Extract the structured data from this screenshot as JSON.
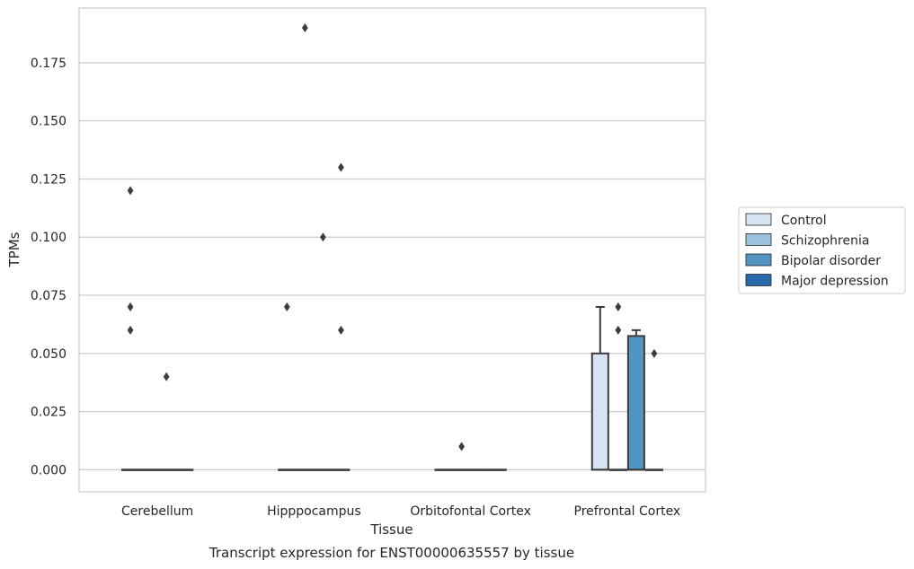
{
  "chart_data": {
    "type": "box",
    "caption": "Transcript expression for ENST00000635557 by tissue",
    "xlabel": "Tissue",
    "ylabel": "TPMs",
    "ylim": [
      -0.0095,
      0.1985
    ],
    "yticks": [
      "0.000",
      "0.025",
      "0.050",
      "0.075",
      "0.100",
      "0.125",
      "0.150",
      "0.175"
    ],
    "grid": true,
    "legend_placement": "center-right",
    "categories": [
      "Cerebellum",
      "Hipppocampus",
      "Orbitofontal Cortex",
      "Prefrontal Cortex"
    ],
    "series": [
      {
        "name": "Control",
        "color": "#d6e4f3",
        "boxes": [
          {
            "category": "Cerebellum",
            "q1": 0,
            "median": 0,
            "q3": 0,
            "whisker_low": 0,
            "whisker_high": 0,
            "outliers": [
              0.12,
              0.07,
              0.06
            ]
          },
          {
            "category": "Hipppocampus",
            "q1": 0,
            "median": 0,
            "q3": 0,
            "whisker_low": 0,
            "whisker_high": 0,
            "outliers": [
              0.07
            ]
          },
          {
            "category": "Orbitofontal Cortex",
            "q1": 0,
            "median": 0,
            "q3": 0,
            "whisker_low": 0,
            "whisker_high": 0,
            "outliers": []
          },
          {
            "category": "Prefrontal Cortex",
            "q1": 0,
            "median": 0,
            "q3": 0.05,
            "whisker_low": 0,
            "whisker_high": 0.07,
            "outliers": []
          }
        ]
      },
      {
        "name": "Schizophrenia",
        "color": "#9cc3de",
        "boxes": [
          {
            "category": "Cerebellum",
            "q1": 0,
            "median": 0,
            "q3": 0,
            "whisker_low": 0,
            "whisker_high": 0,
            "outliers": []
          },
          {
            "category": "Hipppocampus",
            "q1": 0,
            "median": 0,
            "q3": 0,
            "whisker_low": 0,
            "whisker_high": 0,
            "outliers": [
              0.19
            ]
          },
          {
            "category": "Orbitofontal Cortex",
            "q1": 0,
            "median": 0,
            "q3": 0,
            "whisker_low": 0,
            "whisker_high": 0,
            "outliers": [
              0.01
            ]
          },
          {
            "category": "Prefrontal Cortex",
            "q1": 0,
            "median": 0,
            "q3": 0,
            "whisker_low": 0,
            "whisker_high": 0,
            "outliers": [
              0.07,
              0.06
            ]
          }
        ]
      },
      {
        "name": "Bipolar disorder",
        "color": "#5294c2",
        "boxes": [
          {
            "category": "Cerebellum",
            "q1": 0,
            "median": 0,
            "q3": 0,
            "whisker_low": 0,
            "whisker_high": 0,
            "outliers": [
              0.04
            ]
          },
          {
            "category": "Hipppocampus",
            "q1": 0,
            "median": 0,
            "q3": 0,
            "whisker_low": 0,
            "whisker_high": 0,
            "outliers": [
              0.1
            ]
          },
          {
            "category": "Orbitofontal Cortex",
            "q1": 0,
            "median": 0,
            "q3": 0,
            "whisker_low": 0,
            "whisker_high": 0,
            "outliers": []
          },
          {
            "category": "Prefrontal Cortex",
            "q1": 0,
            "median": 0,
            "q3": 0.0575,
            "whisker_low": 0,
            "whisker_high": 0.06,
            "outliers": []
          }
        ]
      },
      {
        "name": "Major depression",
        "color": "#2a6aab",
        "boxes": [
          {
            "category": "Cerebellum",
            "q1": 0,
            "median": 0,
            "q3": 0,
            "whisker_low": 0,
            "whisker_high": 0,
            "outliers": []
          },
          {
            "category": "Hipppocampus",
            "q1": 0,
            "median": 0,
            "q3": 0,
            "whisker_low": 0,
            "whisker_high": 0,
            "outliers": [
              0.13,
              0.06
            ]
          },
          {
            "category": "Orbitofontal Cortex",
            "q1": 0,
            "median": 0,
            "q3": 0,
            "whisker_low": 0,
            "whisker_high": 0,
            "outliers": []
          },
          {
            "category": "Prefrontal Cortex",
            "q1": 0,
            "median": 0,
            "q3": 0,
            "whisker_low": 0,
            "whisker_high": 0,
            "outliers": [
              0.05
            ]
          }
        ]
      }
    ]
  }
}
